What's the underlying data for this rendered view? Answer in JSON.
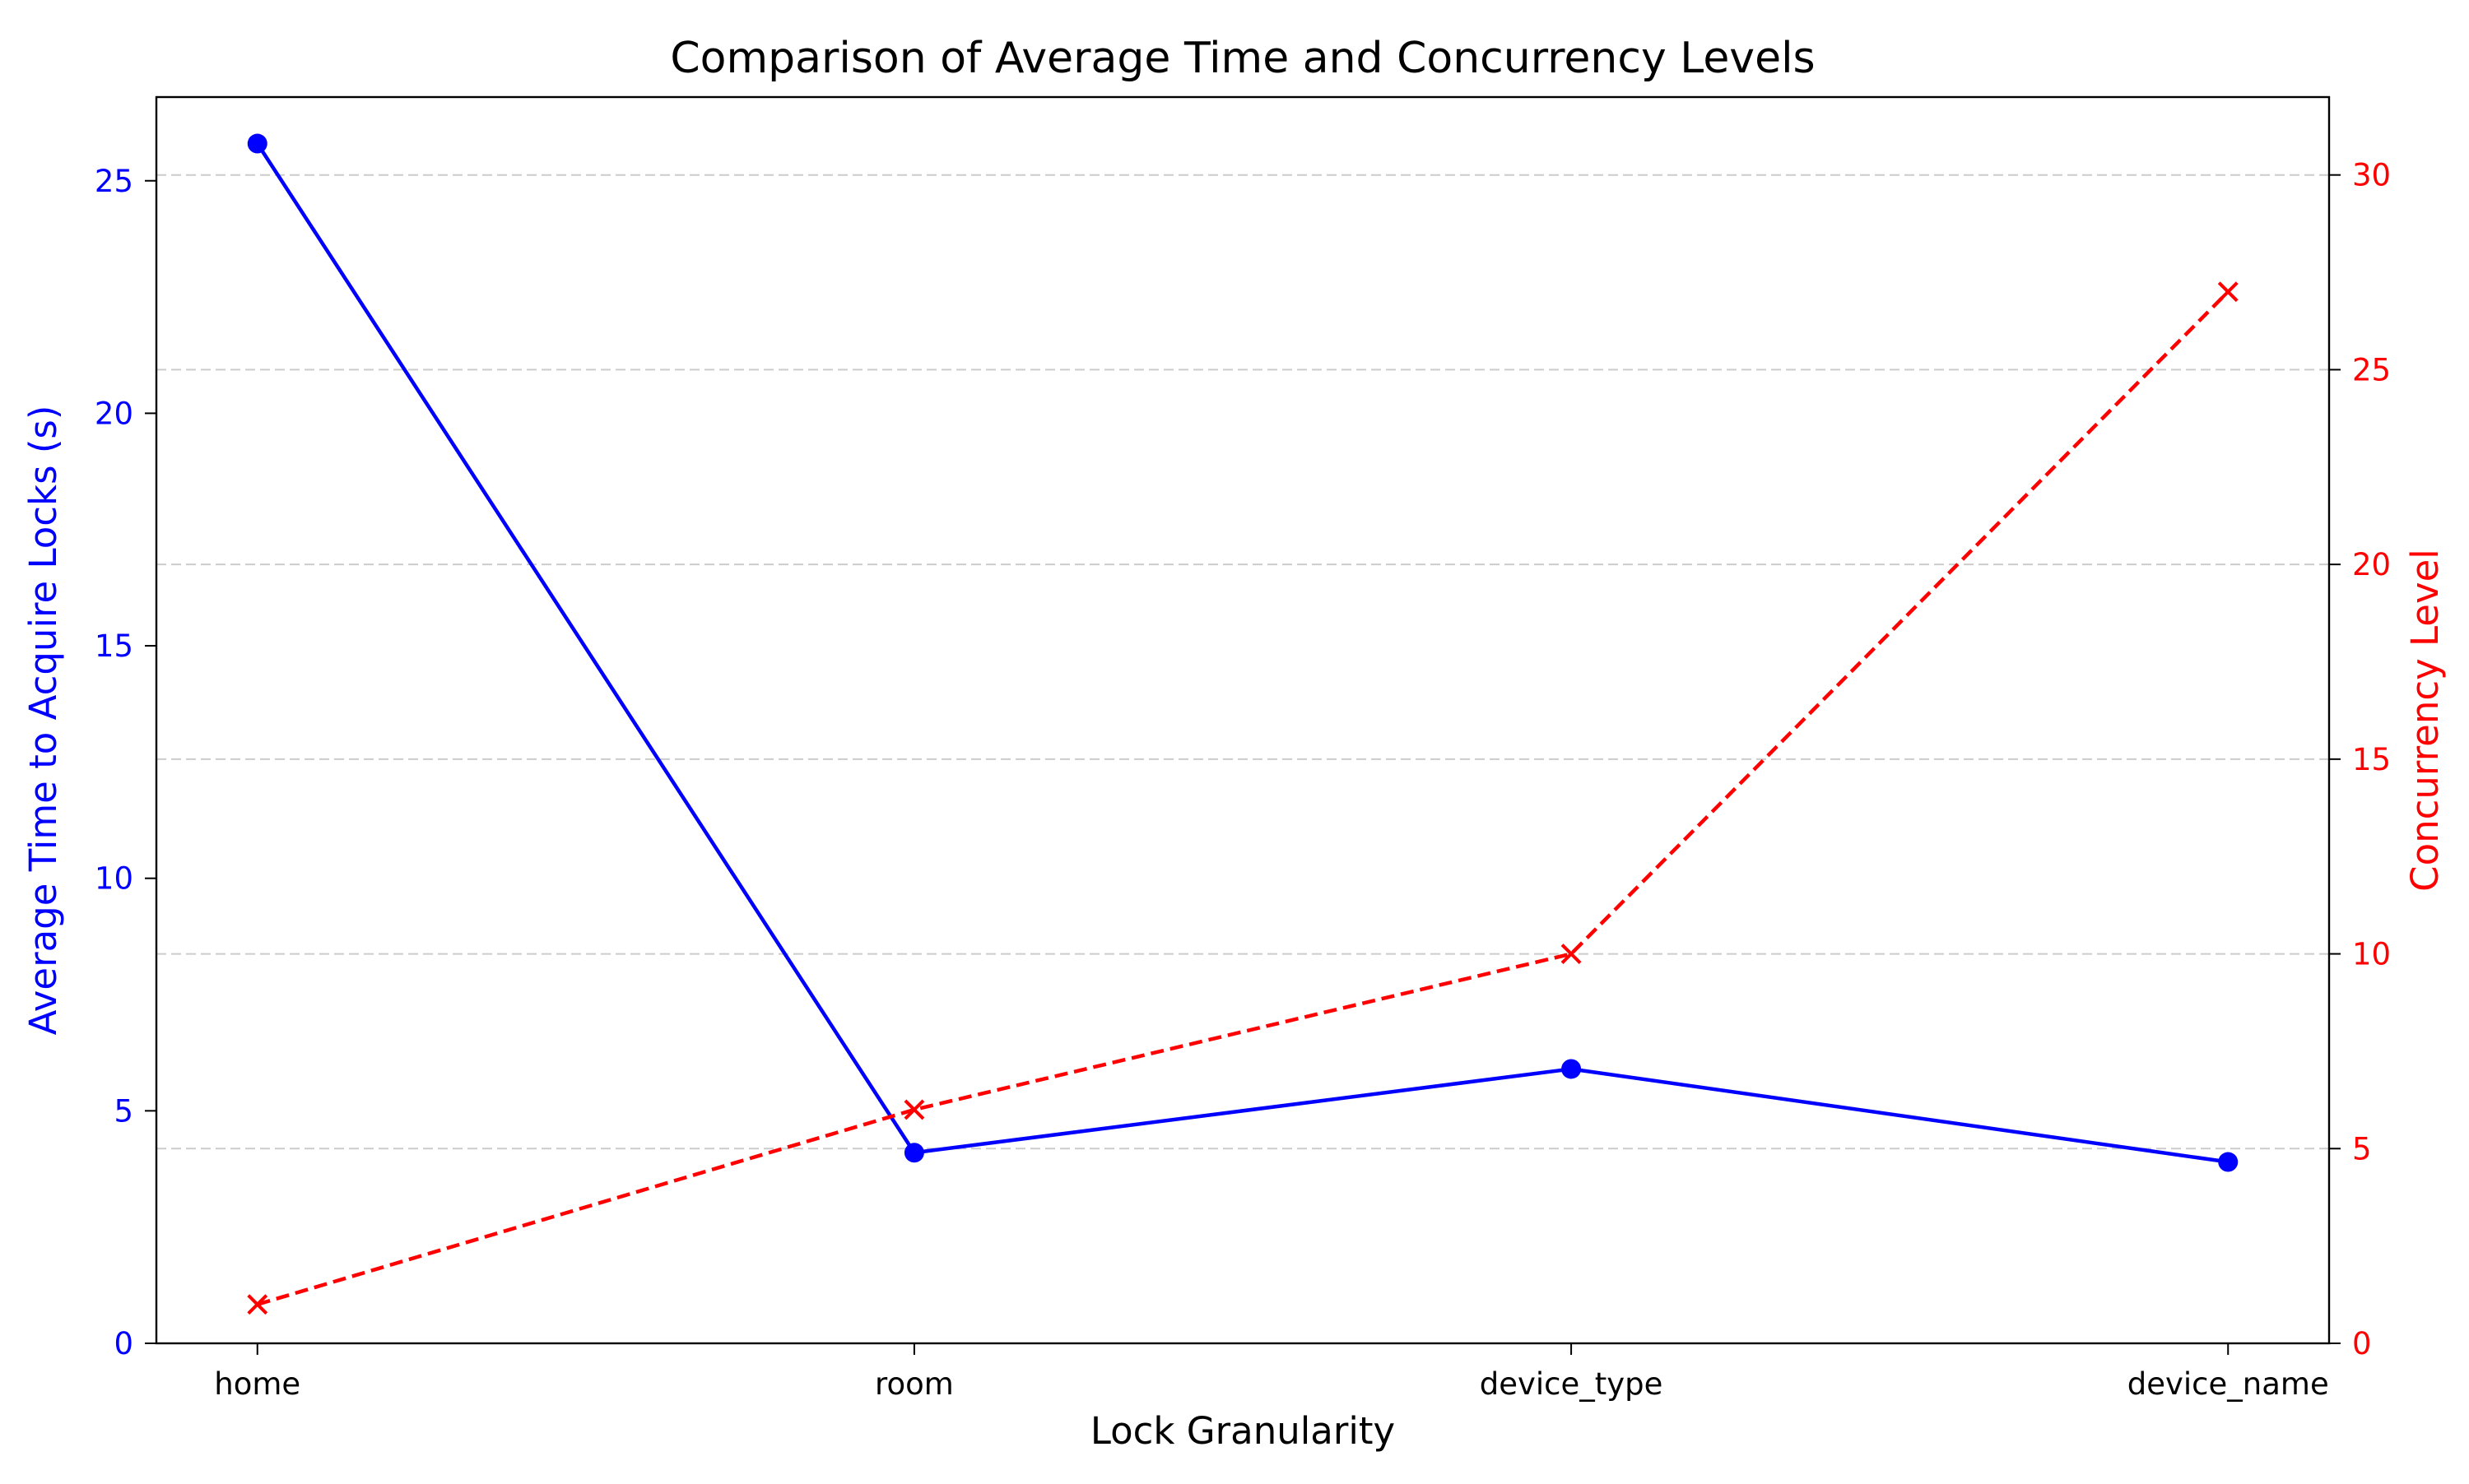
{
  "chart_data": {
    "type": "line",
    "title": "Comparison of Average Time and Concurrency Levels",
    "xlabel": "Lock Granularity",
    "categories": [
      "home",
      "room",
      "device_type",
      "device_name"
    ],
    "y_left": {
      "label": "Average Time to Acquire Locks (s)",
      "color": "#0000ff",
      "lim": [
        0,
        26.8
      ],
      "ticks": [
        0,
        5,
        10,
        15,
        20,
        25
      ]
    },
    "y_right": {
      "label": "Concurrency Level",
      "color": "#ff0000",
      "lim": [
        0,
        32
      ],
      "ticks": [
        0,
        5,
        10,
        15,
        20,
        25,
        30
      ]
    },
    "grid": {
      "on": true,
      "axis": "y",
      "style": "dashed",
      "color": "#cccccc"
    },
    "series": [
      {
        "axis": "left",
        "color": "#0000ff",
        "line_style": "solid",
        "marker": "circle",
        "values": [
          25.8,
          4.1,
          5.9,
          3.9
        ]
      },
      {
        "axis": "right",
        "color": "#ff0000",
        "line_style": "dashed",
        "marker": "x",
        "values": [
          1,
          6,
          10,
          27
        ]
      }
    ]
  }
}
